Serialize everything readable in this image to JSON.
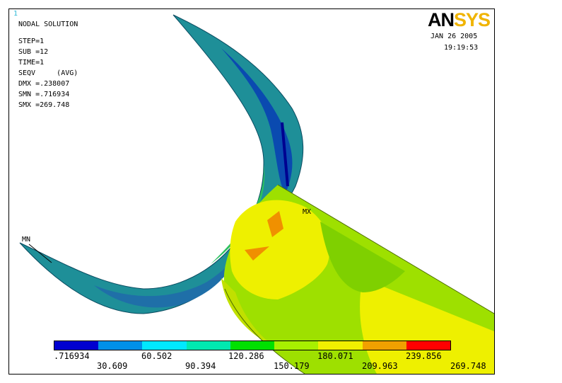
{
  "window_number": "1",
  "logo": {
    "part1": "AN",
    "part2": "SYS"
  },
  "info": {
    "title": "NODAL SOLUTION",
    "step": "STEP=1",
    "sub": "SUB =12",
    "time": "TIME=1",
    "seqv": "SEQV     (AVG)",
    "dmx": "DMX =.238007",
    "smn": "SMN =.716934",
    "smx": "SMX =269.748"
  },
  "date": "JAN 26 2005",
  "time": "19:19:53",
  "markers": {
    "max": "MX",
    "min": "MN"
  },
  "legend": {
    "colors": [
      "#0000d0",
      "#0090e8",
      "#00e8ff",
      "#00e8b0",
      "#00e000",
      "#a8f000",
      "#f0f000",
      "#f0a000",
      "#ff0000"
    ],
    "top_labels": [
      ".716934",
      "60.502",
      "120.286",
      "180.071",
      "239.856"
    ],
    "bottom_labels": [
      "30.609",
      "90.394",
      "150.179",
      "209.963",
      "269.748"
    ]
  }
}
